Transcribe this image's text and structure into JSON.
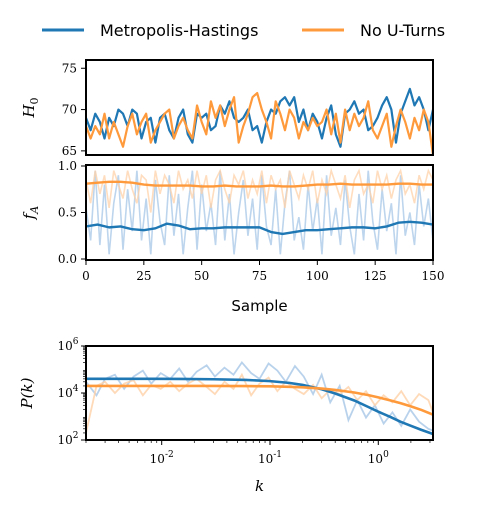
{
  "colors": {
    "series_a": "#1f77b4",
    "series_b": "#ff7f0e",
    "series_b_bright": "#ff9a3c",
    "faint_a": "#a7c7e7",
    "faint_b": "#ffd1a8",
    "frame": "#000000"
  },
  "legend": {
    "series_a": "Metropolis-Hastings",
    "series_b": "No U-Turns"
  },
  "chart_data": [
    {
      "type": "line",
      "ylabel_base": "H",
      "ylabel_sub": "0",
      "xlim": [
        0,
        150
      ],
      "ylim": [
        64.5,
        76
      ],
      "yticks": [
        65,
        70,
        75
      ],
      "ytick_labels": [
        "65",
        "70",
        "75"
      ],
      "x": [
        0,
        2,
        4,
        6,
        8,
        10,
        12,
        14,
        16,
        18,
        20,
        22,
        24,
        26,
        28,
        30,
        32,
        34,
        36,
        38,
        40,
        42,
        44,
        46,
        48,
        50,
        52,
        54,
        56,
        58,
        60,
        62,
        64,
        66,
        68,
        70,
        72,
        74,
        76,
        78,
        80,
        82,
        84,
        86,
        88,
        90,
        92,
        94,
        96,
        98,
        100,
        102,
        104,
        106,
        108,
        110,
        112,
        114,
        116,
        118,
        120,
        122,
        124,
        126,
        128,
        130,
        132,
        134,
        136,
        138,
        140,
        142,
        144,
        146,
        148,
        150
      ],
      "series": [
        {
          "name": "Metropolis-Hastings",
          "key": "a",
          "values": [
            69.0,
            67.5,
            69.5,
            68.5,
            66.5,
            69.0,
            68.0,
            70.0,
            69.5,
            68.0,
            70.0,
            69.5,
            66.5,
            68.5,
            69.0,
            66.0,
            69.0,
            69.5,
            67.5,
            66.5,
            69.0,
            70.0,
            67.0,
            66.0,
            69.5,
            69.0,
            69.5,
            67.5,
            68.0,
            70.5,
            69.5,
            71.0,
            69.0,
            68.5,
            69.0,
            70.0,
            67.5,
            68.0,
            66.0,
            68.5,
            70.0,
            69.5,
            71.0,
            71.5,
            70.5,
            71.5,
            68.5,
            70.0,
            67.5,
            69.5,
            68.5,
            66.5,
            69.0,
            70.5,
            67.0,
            65.5,
            69.5,
            70.0,
            71.0,
            69.5,
            70.0,
            67.5,
            68.0,
            69.0,
            70.5,
            71.5,
            70.0,
            66.0,
            69.5,
            71.0,
            72.5,
            70.5,
            71.5,
            70.0,
            67.5,
            70.0
          ]
        },
        {
          "name": "No U-Turns",
          "key": "b",
          "values": [
            68.0,
            66.5,
            68.0,
            67.0,
            69.5,
            66.5,
            68.5,
            67.0,
            65.5,
            68.0,
            69.5,
            67.0,
            68.5,
            69.5,
            66.0,
            67.5,
            68.5,
            69.5,
            70.0,
            66.5,
            68.0,
            69.0,
            67.5,
            66.5,
            70.5,
            68.5,
            67.0,
            71.0,
            69.0,
            70.5,
            68.0,
            70.0,
            71.5,
            66.0,
            68.0,
            69.5,
            71.5,
            72.0,
            70.0,
            68.5,
            66.5,
            71.0,
            69.5,
            67.5,
            70.0,
            69.0,
            66.5,
            68.5,
            67.5,
            69.0,
            68.0,
            68.5,
            70.0,
            67.0,
            69.5,
            66.0,
            70.0,
            67.5,
            69.5,
            68.0,
            69.0,
            71.0,
            67.5,
            66.5,
            68.0,
            69.5,
            65.5,
            68.0,
            70.0,
            68.5,
            66.5,
            69.0,
            67.5,
            70.0,
            68.5,
            64.5
          ]
        }
      ]
    },
    {
      "type": "line",
      "ylabel_base": "f",
      "ylabel_sub": "A",
      "xlabel": "Sample",
      "xlim": [
        0,
        150
      ],
      "ylim": [
        0.0,
        1.0
      ],
      "yticks": [
        0.0,
        0.5,
        1.0
      ],
      "ytick_labels": [
        "0.0",
        "0.5",
        "1.0"
      ],
      "xticks": [
        0,
        25,
        50,
        75,
        100,
        125,
        150
      ],
      "xtick_labels": [
        "0",
        "25",
        "50",
        "75",
        "100",
        "125",
        "150"
      ],
      "raw_x": [
        0,
        2,
        4,
        6,
        8,
        10,
        12,
        14,
        16,
        18,
        20,
        22,
        24,
        26,
        28,
        30,
        32,
        34,
        36,
        38,
        40,
        42,
        44,
        46,
        48,
        50,
        52,
        54,
        56,
        58,
        60,
        62,
        64,
        66,
        68,
        70,
        72,
        74,
        76,
        78,
        80,
        82,
        84,
        86,
        88,
        90,
        92,
        94,
        96,
        98,
        100,
        102,
        104,
        106,
        108,
        110,
        112,
        114,
        116,
        118,
        120,
        122,
        124,
        126,
        128,
        130,
        132,
        134,
        136,
        138,
        140,
        142,
        144,
        146,
        148,
        150
      ],
      "series": [
        {
          "name": "Metropolis-Hastings",
          "key": "a",
          "raw": [
            0.55,
            0.2,
            0.95,
            0.15,
            0.8,
            0.05,
            0.6,
            0.9,
            0.1,
            0.75,
            0.3,
            0.95,
            0.2,
            0.65,
            0.05,
            0.85,
            0.4,
            0.15,
            0.9,
            0.25,
            0.7,
            0.05,
            0.55,
            0.95,
            0.1,
            0.8,
            0.3,
            0.6,
            0.15,
            0.95,
            0.2,
            0.7,
            0.05,
            0.5,
            0.85,
            0.25,
            0.65,
            0.1,
            0.9,
            0.35,
            0.15,
            0.75,
            0.05,
            0.6,
            0.95,
            0.2,
            0.45,
            0.1,
            0.8,
            0.3,
            0.65,
            0.05,
            0.9,
            0.25,
            0.55,
            0.15,
            0.85,
            0.35,
            0.05,
            0.7,
            0.2,
            0.95,
            0.4,
            0.1,
            0.75,
            0.3,
            0.6,
            0.05,
            0.9,
            0.25,
            0.5,
            0.15,
            0.8,
            0.35,
            0.65,
            0.2
          ],
          "x": [
            0,
            5,
            10,
            15,
            20,
            25,
            30,
            35,
            40,
            45,
            50,
            55,
            60,
            65,
            70,
            75,
            80,
            85,
            90,
            95,
            100,
            105,
            110,
            115,
            120,
            125,
            130,
            135,
            140,
            145,
            150
          ],
          "values": [
            0.35,
            0.37,
            0.34,
            0.35,
            0.32,
            0.31,
            0.33,
            0.38,
            0.36,
            0.32,
            0.33,
            0.33,
            0.34,
            0.34,
            0.34,
            0.34,
            0.29,
            0.27,
            0.29,
            0.31,
            0.31,
            0.32,
            0.33,
            0.34,
            0.34,
            0.33,
            0.35,
            0.39,
            0.4,
            0.39,
            0.37
          ]
        },
        {
          "name": "No U-Turns",
          "key": "b",
          "raw": [
            0.85,
            0.6,
            0.95,
            0.7,
            0.9,
            0.55,
            0.95,
            0.8,
            0.65,
            0.95,
            0.75,
            0.6,
            0.9,
            0.85,
            0.5,
            0.95,
            0.7,
            0.9,
            0.8,
            0.6,
            0.95,
            0.75,
            0.85,
            0.65,
            0.95,
            0.7,
            0.9,
            0.55,
            0.85,
            0.95,
            0.75,
            0.6,
            0.9,
            0.8,
            0.95,
            0.65,
            0.85,
            0.7,
            0.95,
            0.6,
            0.9,
            0.75,
            0.85,
            0.55,
            0.95,
            0.8,
            0.65,
            0.9,
            0.75,
            0.95,
            0.6,
            0.85,
            0.7,
            0.95,
            0.8,
            0.65,
            0.9,
            0.55,
            0.85,
            0.95,
            0.7,
            0.8,
            0.6,
            0.95,
            0.75,
            0.9,
            0.65,
            0.85,
            0.95,
            0.7,
            0.8,
            0.6,
            0.9,
            0.75,
            0.95,
            0.85
          ],
          "x": [
            0,
            5,
            10,
            15,
            20,
            25,
            30,
            35,
            40,
            45,
            50,
            55,
            60,
            65,
            70,
            75,
            80,
            85,
            90,
            95,
            100,
            105,
            110,
            115,
            120,
            125,
            130,
            135,
            140,
            145,
            150
          ],
          "values": [
            0.81,
            0.82,
            0.83,
            0.83,
            0.82,
            0.8,
            0.79,
            0.79,
            0.79,
            0.79,
            0.78,
            0.78,
            0.79,
            0.78,
            0.78,
            0.78,
            0.79,
            0.78,
            0.78,
            0.79,
            0.8,
            0.8,
            0.81,
            0.8,
            0.8,
            0.8,
            0.8,
            0.81,
            0.81,
            0.8,
            0.8
          ]
        }
      ]
    },
    {
      "type": "line",
      "ylabel": "P(k)",
      "xlabel": "k",
      "xscale": "log",
      "yscale": "log",
      "xlim": [
        0.002,
        3.2
      ],
      "ylim": [
        100,
        1000000
      ],
      "yticks": [
        100,
        10000,
        1000000
      ],
      "ytick_labels": [
        "10^2",
        "10^4",
        "10^6"
      ],
      "xticks": [
        0.01,
        0.1,
        1
      ],
      "xtick_labels": [
        "10^-2",
        "10^-1",
        "10^0"
      ],
      "raw_x": [
        0.002,
        0.0025,
        0.003,
        0.0037,
        0.0045,
        0.0055,
        0.0067,
        0.008,
        0.0098,
        0.012,
        0.0145,
        0.0175,
        0.021,
        0.026,
        0.031,
        0.038,
        0.046,
        0.055,
        0.067,
        0.08,
        0.097,
        0.117,
        0.14,
        0.17,
        0.205,
        0.25,
        0.3,
        0.36,
        0.44,
        0.53,
        0.64,
        0.77,
        0.93,
        1.12,
        1.35,
        1.63,
        1.97,
        2.38,
        2.9,
        3.2
      ],
      "series": [
        {
          "name": "Metropolis-Hastings",
          "key": "a",
          "raw": [
            30000,
            8000,
            40000,
            60000,
            15000,
            50000,
            90000,
            25000,
            70000,
            40000,
            110000,
            30000,
            80000,
            150000,
            50000,
            120000,
            60000,
            200000,
            70000,
            40000,
            180000,
            90000,
            30000,
            140000,
            50000,
            9000,
            60000,
            4000,
            20000,
            700,
            5000,
            900,
            3000,
            500,
            1500,
            400,
            2000,
            600,
            300,
            250
          ],
          "x": [
            0.002,
            0.004,
            0.008,
            0.015,
            0.03,
            0.06,
            0.1,
            0.15,
            0.2,
            0.3,
            0.4,
            0.6,
            0.8,
            1.0,
            1.3,
            1.6,
            2.0,
            2.5,
            3.2
          ],
          "values": [
            40000,
            40000,
            40000,
            39500,
            38500,
            36000,
            32000,
            27000,
            22000,
            14500,
            9500,
            4800,
            2600,
            1600,
            950,
            600,
            400,
            270,
            180
          ]
        },
        {
          "name": "No U-Turns",
          "key": "b",
          "raw": [
            200,
            20000,
            30000,
            10000,
            25000,
            35000,
            8000,
            22000,
            15000,
            30000,
            12000,
            25000,
            40000,
            18000,
            9000,
            30000,
            15000,
            60000,
            8000,
            25000,
            45000,
            12000,
            30000,
            15000,
            9000,
            22000,
            6000,
            14000,
            9000,
            18000,
            5000,
            12000,
            3000,
            8000,
            4000,
            12000,
            3000,
            9000,
            5000,
            1500
          ],
          "x": [
            0.002,
            0.004,
            0.008,
            0.015,
            0.03,
            0.06,
            0.1,
            0.15,
            0.2,
            0.3,
            0.4,
            0.6,
            0.8,
            1.0,
            1.3,
            1.6,
            2.0,
            2.5,
            3.2
          ],
          "values": [
            20000,
            20000,
            20000,
            20000,
            19900,
            19700,
            19200,
            18400,
            17500,
            15500,
            13500,
            10500,
            8200,
            6500,
            4800,
            3700,
            2700,
            1900,
            1200
          ]
        }
      ]
    }
  ]
}
